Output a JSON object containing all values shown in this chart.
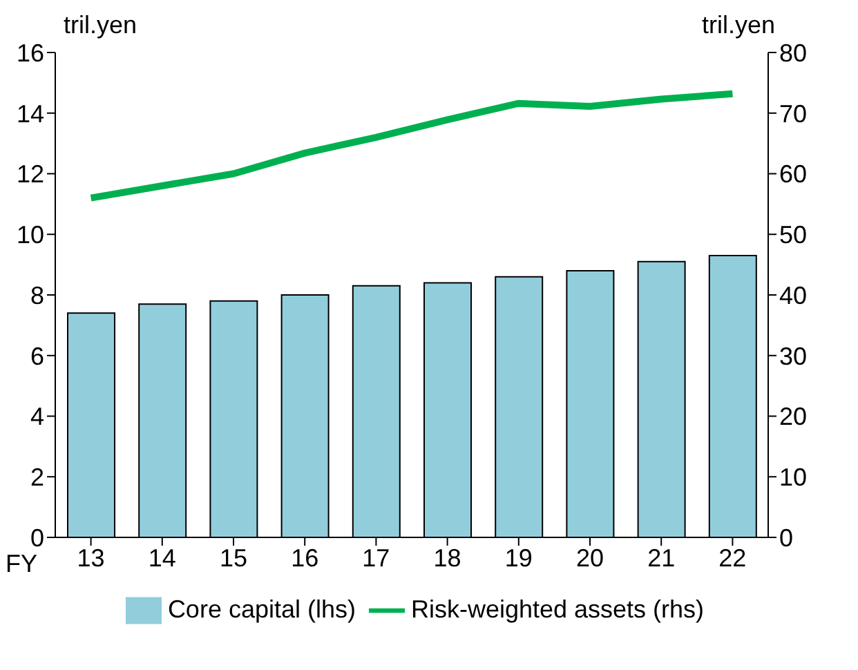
{
  "chart_data": {
    "type": "bar",
    "categories": [
      "13",
      "14",
      "15",
      "16",
      "17",
      "18",
      "19",
      "20",
      "21",
      "22"
    ],
    "xlabel": "FY",
    "ylabel": "tril.yen",
    "y2label": "tril.yen",
    "series": [
      {
        "name": "Core capital (lhs)",
        "color": "#92cddc",
        "values": [
          7.4,
          7.7,
          7.8,
          8.0,
          8.3,
          8.4,
          8.6,
          8.8,
          9.1,
          9.3
        ]
      },
      {
        "name": "Risk-weighted assets (rhs)",
        "type": "line",
        "axis": "y2",
        "color": "#00b050",
        "values": [
          56,
          58,
          60,
          63.4,
          66,
          68.9,
          71.6,
          71.1,
          72.3,
          73.2
        ]
      }
    ],
    "ylim": [
      0,
      16
    ],
    "yticks": [
      0,
      2,
      4,
      6,
      8,
      10,
      12,
      14,
      16
    ],
    "y2lim": [
      0,
      80
    ],
    "y2ticks": [
      0,
      10,
      20,
      30,
      40,
      50,
      60,
      70,
      80
    ],
    "grid": false,
    "legend": "bottom",
    "marker": "none",
    "line_style": "solid"
  }
}
